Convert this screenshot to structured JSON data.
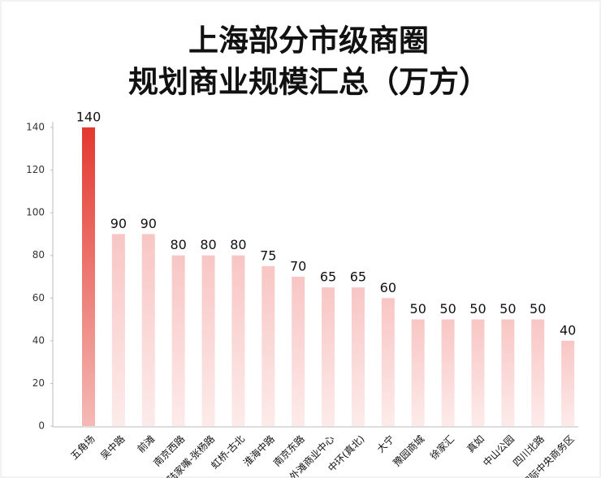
{
  "chart_data": {
    "type": "bar",
    "title": [
      "上海部分市级商圈",
      "规划商业规模汇总（万方）"
    ],
    "categories": [
      "五角场",
      "吴中路",
      "前滩",
      "南京西路",
      "陆家嘴-张杨路",
      "虹桥-古北",
      "淮海中路",
      "南京东路",
      "外滩商业中心",
      "中环(真北)",
      "大宁",
      "豫园商城",
      "徐家汇",
      "真如",
      "中山公园",
      "四川北路",
      "国际中央商务区"
    ],
    "values": [
      140,
      90,
      90,
      80,
      80,
      80,
      75,
      70,
      65,
      65,
      60,
      50,
      50,
      50,
      50,
      50,
      40
    ],
    "colors": [
      "#e3392f",
      "#f8c6c4",
      "#f8c6c4",
      "#f8c6c4",
      "#f8c6c4",
      "#f8c6c4",
      "#f8c6c4",
      "#f8c6c4",
      "#f8c6c4",
      "#f8c6c4",
      "#f8c6c4",
      "#f8c6c4",
      "#f8c6c4",
      "#f8c6c4",
      "#f8c6c4",
      "#f8c6c4",
      "#f8c6c4"
    ],
    "ylim": [
      0,
      140
    ],
    "yticks": [
      0,
      20,
      40,
      60,
      80,
      100,
      120,
      140
    ],
    "grid": false
  }
}
